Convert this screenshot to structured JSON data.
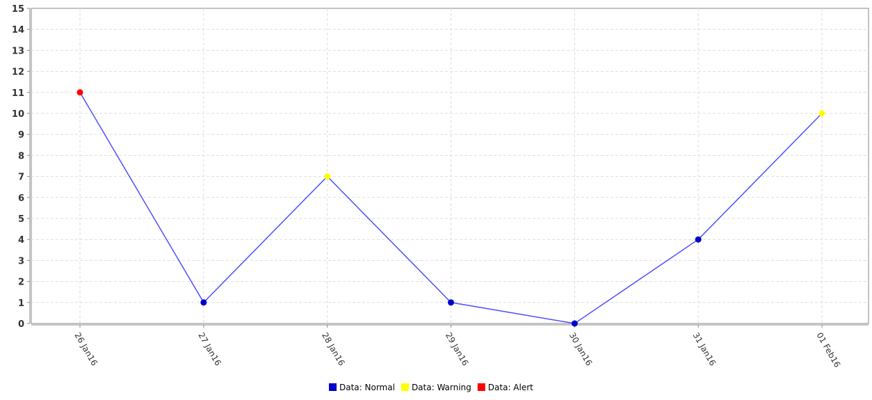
{
  "chart_data": {
    "type": "line",
    "title": "",
    "xlabel": "",
    "ylabel": "",
    "ylim": [
      0,
      15
    ],
    "yticks": [
      "0",
      "1",
      "2",
      "3",
      "4",
      "5",
      "6",
      "7",
      "8",
      "9",
      "10",
      "11",
      "12",
      "13",
      "14",
      "15"
    ],
    "categories": [
      "26 Jan16",
      "27 Jan16",
      "28 Jan16",
      "29 Jan16",
      "30 Jan16",
      "31 Jan16",
      "01 Feb16"
    ],
    "values": [
      11,
      1,
      7,
      1,
      0,
      4,
      10
    ],
    "point_status": [
      "Alert",
      "Normal",
      "Warning",
      "Normal",
      "Normal",
      "Normal",
      "Warning"
    ],
    "grid": true,
    "line_color": "#4d4dff",
    "legend_position": "bottom",
    "legend": [
      {
        "key": "Normal",
        "label": "Data: Normal",
        "color": "#0000cc"
      },
      {
        "key": "Warning",
        "label": "Data: Warning",
        "color": "#ffff00"
      },
      {
        "key": "Alert",
        "label": "Data: Alert",
        "color": "#ff0000"
      }
    ]
  }
}
